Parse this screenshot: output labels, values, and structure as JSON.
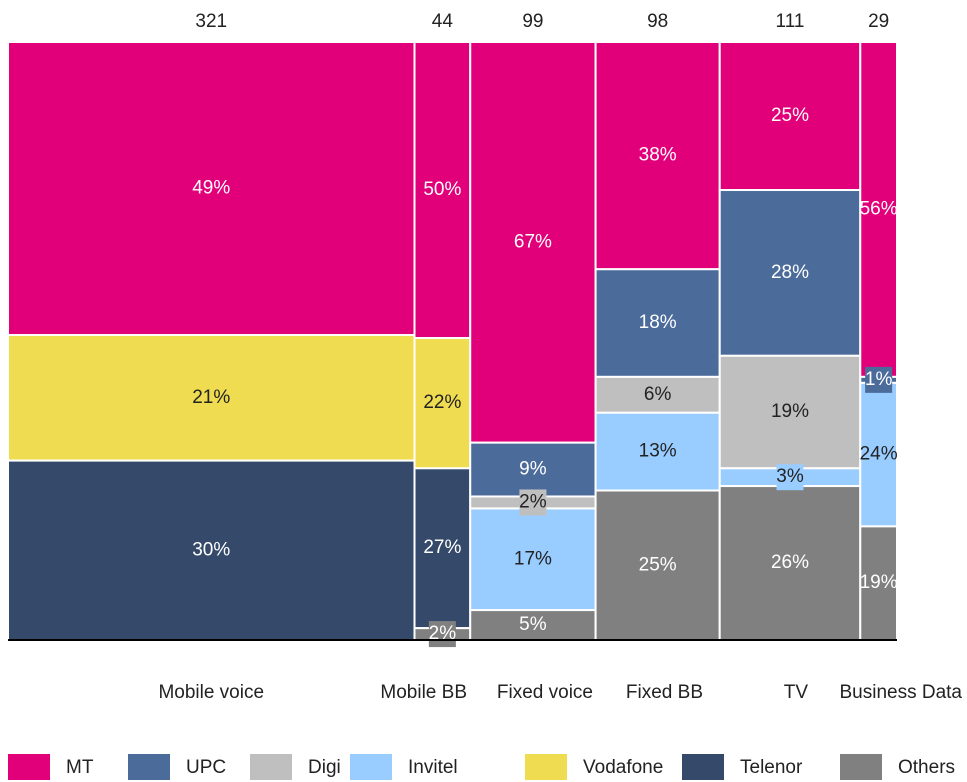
{
  "chart_data": {
    "type": "marimekko",
    "categories": [
      "Mobile voice",
      "Mobile BB",
      "Fixed voice",
      "Fixed BB",
      "TV",
      "Business Data"
    ],
    "widths": [
      321,
      44,
      99,
      98,
      111,
      29
    ],
    "series": [
      {
        "name": "MT",
        "color": "#e2007a",
        "values": [
          49,
          50,
          67,
          38,
          25,
          56
        ],
        "value_labels": [
          "49%",
          "50%",
          "67%",
          "38%",
          "25%",
          "56%"
        ]
      },
      {
        "name": "UPC",
        "color": "#4b6b9b",
        "values": [
          null,
          null,
          9,
          18,
          28,
          1
        ],
        "value_labels": [
          null,
          null,
          "9%",
          "18%",
          "28%",
          "1%"
        ]
      },
      {
        "name": "Digi",
        "color": "#bfbfbf",
        "values": [
          null,
          null,
          2,
          6,
          19,
          null
        ],
        "value_labels": [
          null,
          null,
          "2%",
          "6%",
          "19%",
          null
        ]
      },
      {
        "name": "Invitel",
        "color": "#99ccff",
        "values": [
          null,
          null,
          17,
          13,
          3,
          24
        ],
        "value_labels": [
          null,
          null,
          "17%",
          "13%",
          "3%",
          "24%"
        ]
      },
      {
        "name": "Vodafone",
        "color": "#f0dc50",
        "values": [
          21,
          22,
          null,
          null,
          null,
          null
        ],
        "value_labels": [
          "21%",
          "22%",
          null,
          null,
          null,
          null
        ]
      },
      {
        "name": "Telenor",
        "color": "#354a6b",
        "values": [
          30,
          27,
          null,
          null,
          null,
          null
        ],
        "value_labels": [
          "30%",
          "27%",
          null,
          null,
          null,
          null
        ]
      },
      {
        "name": "Others",
        "color": "#808080",
        "values": [
          null,
          2,
          5,
          25,
          26,
          19
        ],
        "value_labels": [
          null,
          "2%",
          "5%",
          "25%",
          "26%",
          "19%"
        ]
      }
    ]
  }
}
